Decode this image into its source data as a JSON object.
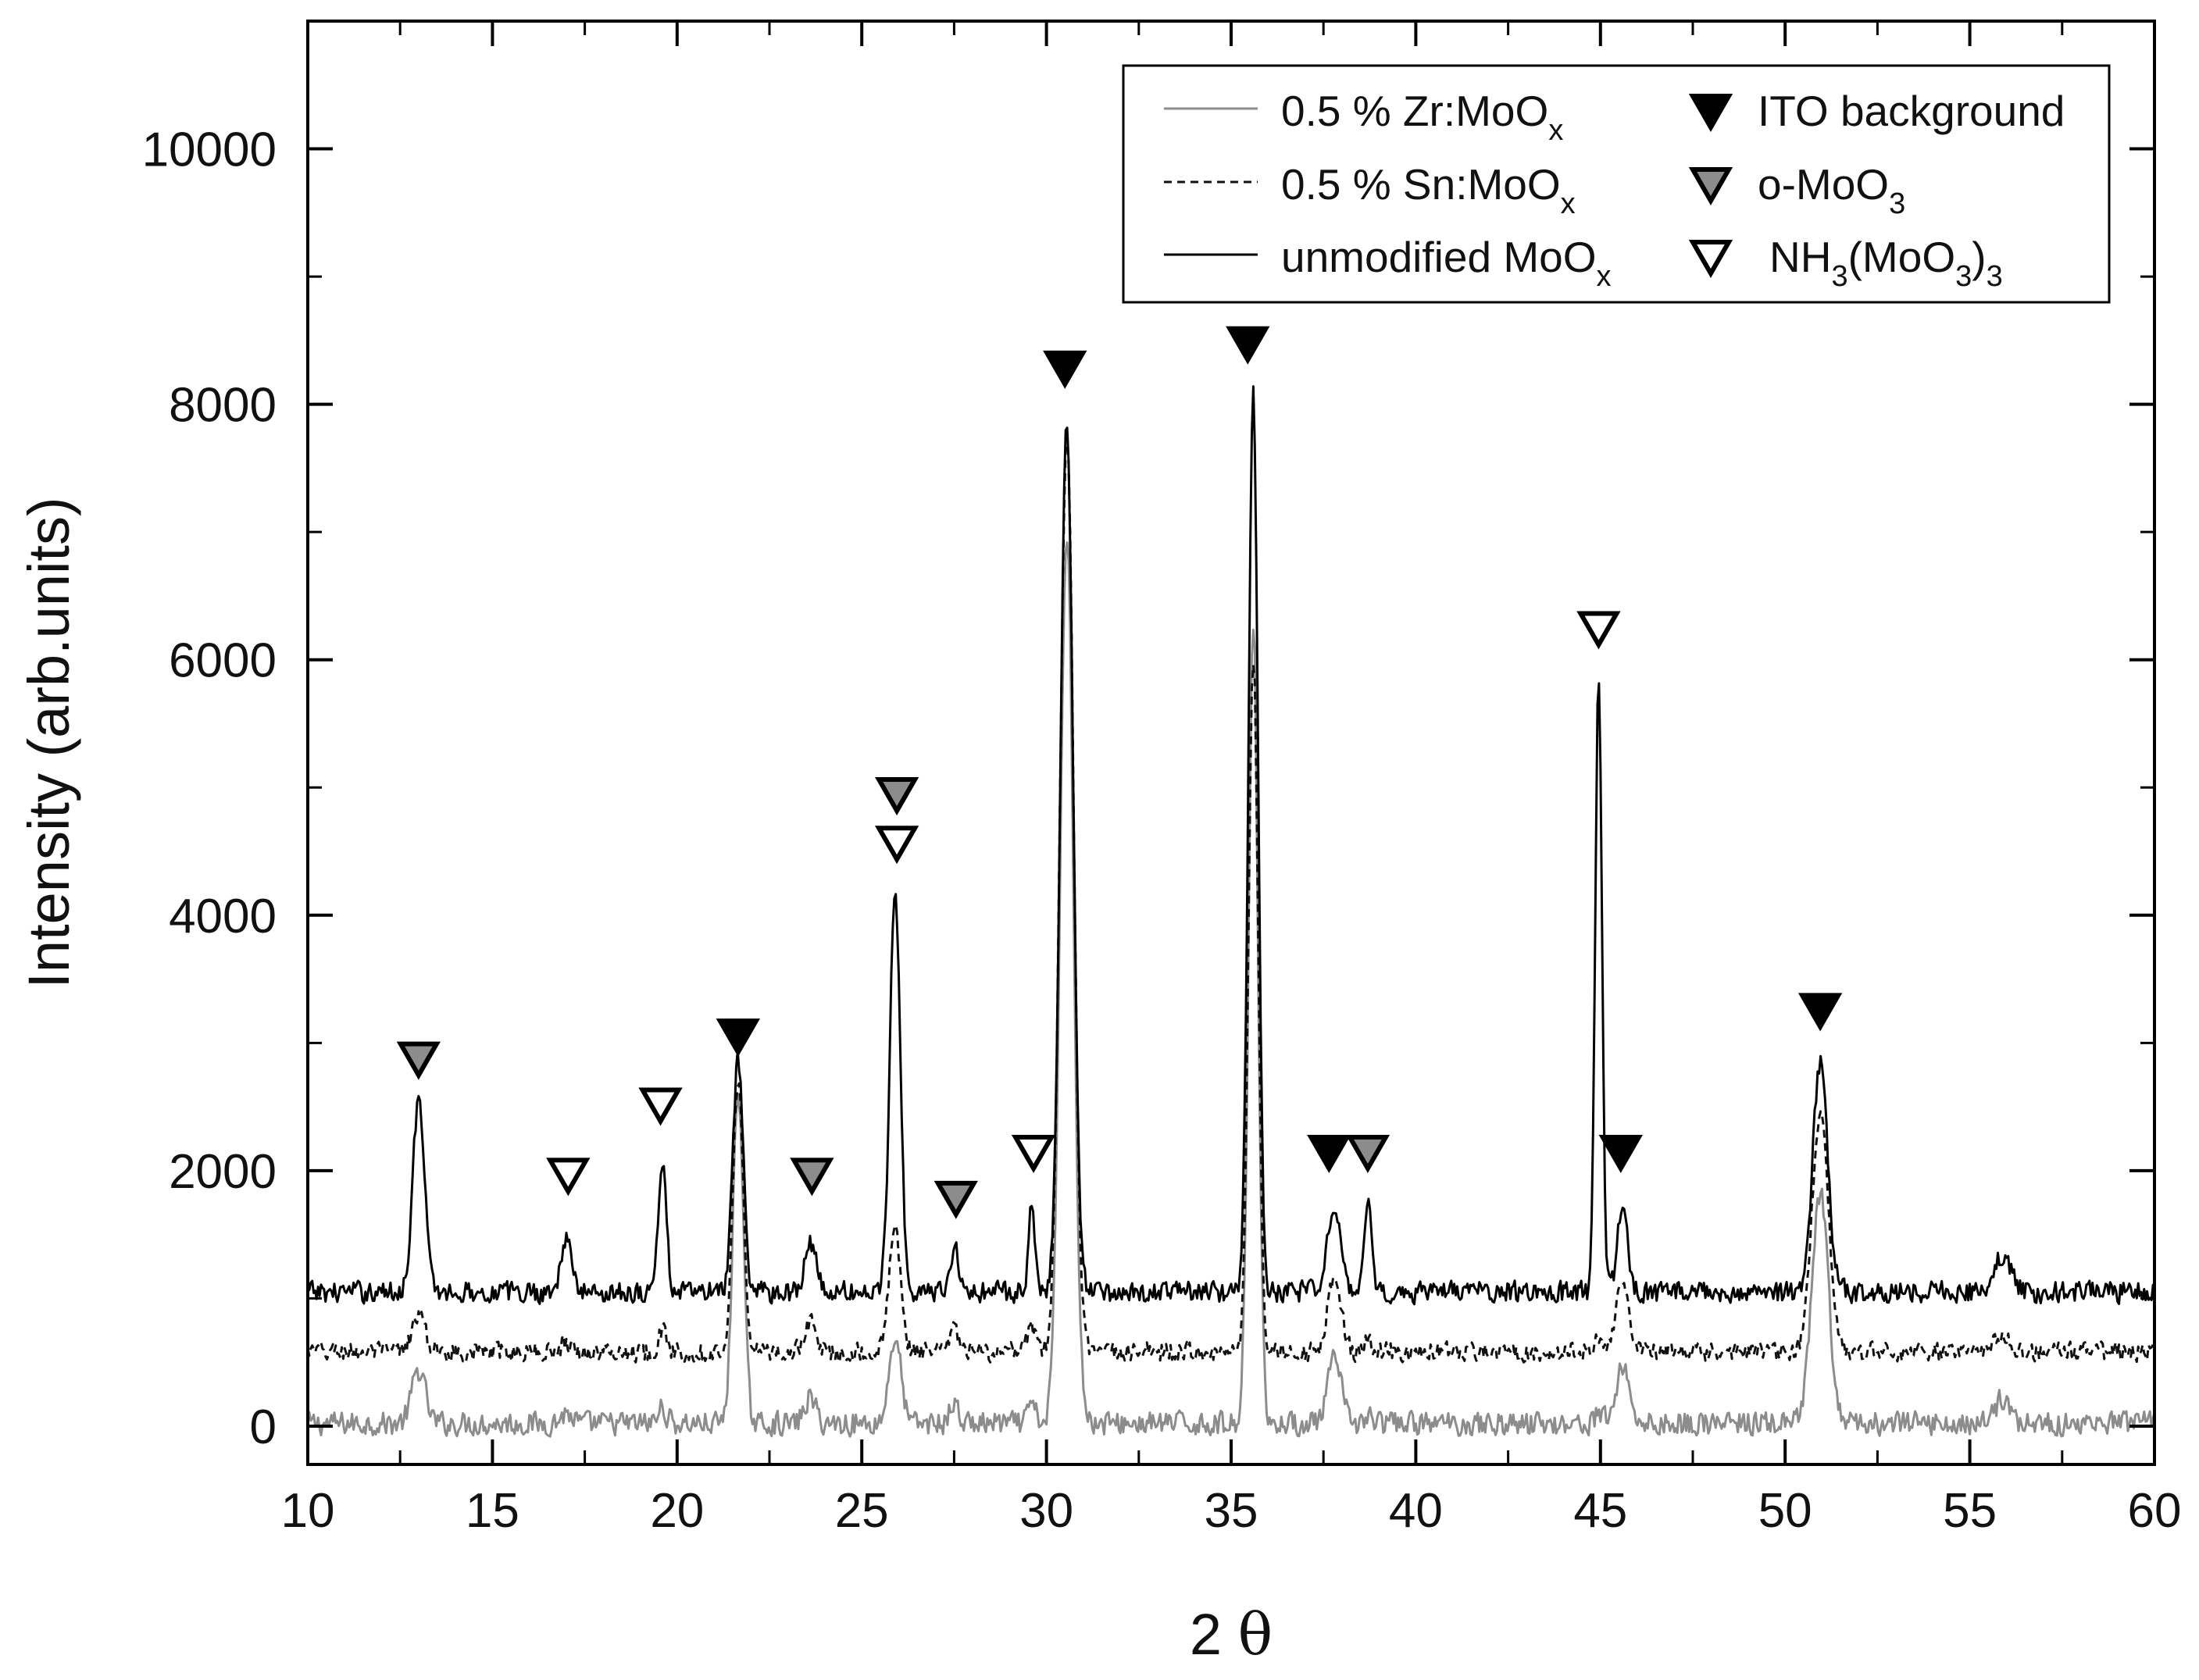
{
  "chart_data": {
    "type": "line",
    "xlabel_parts": {
      "lead": "2 ",
      "symbol": "θ"
    },
    "ylabel": "Intensity (arb.units)",
    "xlim": [
      10,
      60
    ],
    "ylim": [
      -300,
      11000
    ],
    "x_ticks": [
      10,
      15,
      20,
      25,
      30,
      35,
      40,
      45,
      50,
      55,
      60
    ],
    "y_ticks": [
      0,
      2000,
      4000,
      6000,
      8000,
      10000
    ],
    "grid": false,
    "legend_position": "top-right",
    "series": [
      {
        "name": "0.5 % Zr:MoO",
        "name_sub": "x",
        "color": "#8c8c8c",
        "dash": "solid",
        "baseline": 20,
        "noise": 110,
        "peaks": [
          [
            13.0,
            420,
            0.18
          ],
          [
            17.0,
            80,
            0.15
          ],
          [
            19.6,
            120,
            0.12
          ],
          [
            21.65,
            2650,
            0.14
          ],
          [
            23.6,
            200,
            0.15
          ],
          [
            25.9,
            680,
            0.16
          ],
          [
            27.5,
            150,
            0.12
          ],
          [
            29.6,
            150,
            0.1
          ],
          [
            30.55,
            7000,
            0.18
          ],
          [
            35.6,
            6300,
            0.13
          ],
          [
            37.8,
            500,
            0.18
          ],
          [
            38.7,
            60,
            0.1
          ],
          [
            44.95,
            80,
            0.1
          ],
          [
            45.6,
            450,
            0.18
          ],
          [
            50.95,
            1800,
            0.22
          ],
          [
            55.9,
            200,
            0.2
          ]
        ]
      },
      {
        "name": "0.5 % Sn:MoO",
        "name_sub": "x",
        "color": "#111111",
        "dash": "dashed",
        "baseline": 580,
        "noise": 90,
        "peaks": [
          [
            13.0,
            280,
            0.18
          ],
          [
            17.0,
            80,
            0.15
          ],
          [
            19.6,
            150,
            0.12
          ],
          [
            21.65,
            2150,
            0.14
          ],
          [
            23.6,
            250,
            0.15
          ],
          [
            25.9,
            950,
            0.16
          ],
          [
            27.5,
            180,
            0.12
          ],
          [
            29.6,
            200,
            0.1
          ],
          [
            30.55,
            7200,
            0.18
          ],
          [
            35.6,
            5450,
            0.13
          ],
          [
            37.8,
            600,
            0.18
          ],
          [
            38.7,
            80,
            0.1
          ],
          [
            44.95,
            80,
            0.1
          ],
          [
            45.6,
            550,
            0.18
          ],
          [
            50.95,
            1850,
            0.22
          ],
          [
            55.9,
            160,
            0.2
          ]
        ]
      },
      {
        "name": "unmodified MoO",
        "name_sub": "x",
        "color": "#000000",
        "dash": "solid",
        "baseline": 1050,
        "noise": 100,
        "peaks": [
          [
            13.0,
            1500,
            0.16
          ],
          [
            17.0,
            400,
            0.15
          ],
          [
            19.6,
            1000,
            0.11
          ],
          [
            21.65,
            1800,
            0.14
          ],
          [
            23.6,
            400,
            0.15
          ],
          [
            25.9,
            3200,
            0.14
          ],
          [
            27.5,
            350,
            0.12
          ],
          [
            29.6,
            750,
            0.08
          ],
          [
            30.55,
            6800,
            0.17
          ],
          [
            35.6,
            7000,
            0.13
          ],
          [
            37.8,
            700,
            0.18
          ],
          [
            38.7,
            700,
            0.09
          ],
          [
            44.95,
            4850,
            0.09
          ],
          [
            45.6,
            650,
            0.14
          ],
          [
            50.95,
            1800,
            0.2
          ],
          [
            55.9,
            300,
            0.2
          ]
        ]
      }
    ],
    "marker_legend": [
      {
        "label": "ITO background",
        "style": "filled",
        "color": "#000000"
      },
      {
        "label": "o-MoO",
        "label_sub": "3",
        "style": "gray",
        "color": "#8c8c8c"
      },
      {
        "label": "NH",
        "label_sub": "3",
        "label_mid": "(MoO",
        "label_sub2": "3",
        "label_end": ")",
        "label_sub3": "3",
        "style": "open",
        "color": "#ffffff"
      }
    ],
    "peak_markers": [
      {
        "x": 13.0,
        "y": 2870,
        "style": "gray"
      },
      {
        "x": 17.05,
        "y": 1960,
        "style": "open"
      },
      {
        "x": 19.55,
        "y": 2510,
        "style": "open"
      },
      {
        "x": 21.65,
        "y": 3050,
        "style": "filled"
      },
      {
        "x": 23.65,
        "y": 1960,
        "style": "gray"
      },
      {
        "x": 25.95,
        "y": 4940,
        "style": "gray"
      },
      {
        "x": 25.95,
        "y": 4560,
        "style": "open"
      },
      {
        "x": 27.55,
        "y": 1780,
        "style": "gray"
      },
      {
        "x": 29.65,
        "y": 2140,
        "style": "open"
      },
      {
        "x": 30.5,
        "y": 8280,
        "style": "filled"
      },
      {
        "x": 35.45,
        "y": 8470,
        "style": "filled"
      },
      {
        "x": 37.65,
        "y": 2140,
        "style": "filled"
      },
      {
        "x": 38.7,
        "y": 2140,
        "style": "gray"
      },
      {
        "x": 44.95,
        "y": 6240,
        "style": "open"
      },
      {
        "x": 45.55,
        "y": 2140,
        "style": "filled"
      },
      {
        "x": 50.95,
        "y": 3250,
        "style": "filled"
      }
    ]
  }
}
